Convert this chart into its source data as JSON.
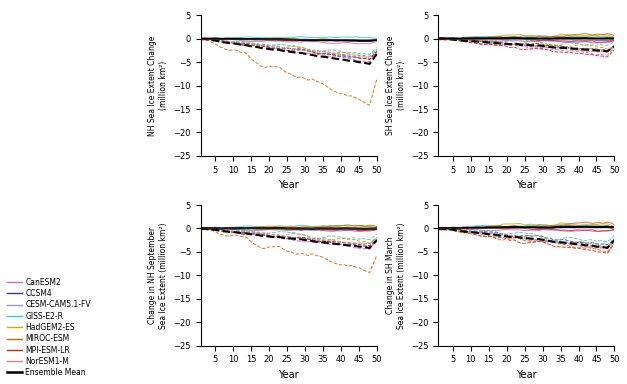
{
  "models": [
    "CanESM2",
    "CCSM4",
    "CESM-CAM5.1-FV",
    "GISS-E2-R",
    "HadGEM2-ES",
    "MIROC-ESM",
    "MPI-ESM-LR",
    "NorESM1-M",
    "Ensemble Mean"
  ],
  "colors": {
    "CanESM2": "#cc66cc",
    "CCSM4": "#3333cc",
    "CESM-CAM5.1-FV": "#9999cc",
    "GISS-E2-R": "#33cccc",
    "HadGEM2-ES": "#ccaa00",
    "MIROC-ESM": "#cc6600",
    "MPI-ESM-LR": "#cc2222",
    "NorESM1-M": "#cc8888",
    "Ensemble Mean": "#000000"
  },
  "n_years": 50,
  "ylim": [
    -25,
    5
  ],
  "yticks": [
    -25,
    -20,
    -15,
    -10,
    -5,
    0,
    5
  ],
  "xticks": [
    5,
    10,
    15,
    20,
    25,
    30,
    35,
    40,
    45,
    50
  ],
  "xlabel": "Year",
  "titles": {
    "top_left": "NH Sea Ice Extent Change (million km²)",
    "top_right": "SH Sea Ice Extent Change (million km²)",
    "bot_left": "Change in NH September\nSea Ice Extent (million km²)",
    "bot_right": "Change in SH March\nSea Ice Extent (million km²)"
  }
}
